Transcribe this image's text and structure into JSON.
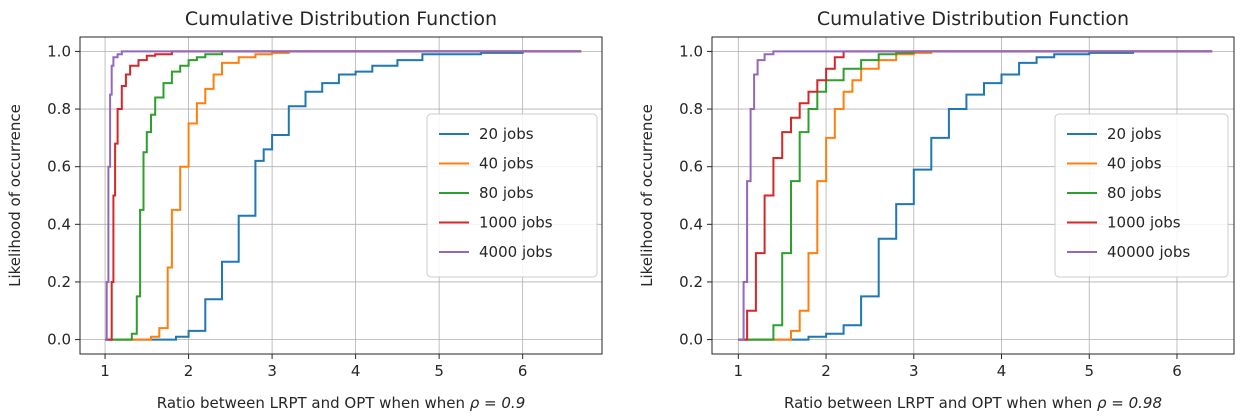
{
  "chart_data": [
    {
      "type": "line",
      "step": true,
      "title": "Cumulative Distribution Function",
      "xlabel_prefix": "Ratio between LRPT and OPT when when ",
      "xlabel_math": "ρ = 0.9",
      "ylabel": "Likelihood of occurrence",
      "xlim": [
        0.7,
        6.95
      ],
      "ylim": [
        -0.05,
        1.05
      ],
      "xticks": [
        1,
        2,
        3,
        4,
        5,
        6
      ],
      "yticks": [
        0.0,
        0.2,
        0.4,
        0.6,
        0.8,
        1.0
      ],
      "xtick_labels": [
        "1",
        "2",
        "3",
        "4",
        "5",
        "6"
      ],
      "ytick_labels": [
        "0.0",
        "0.2",
        "0.4",
        "0.6",
        "0.8",
        "1.0"
      ],
      "grid": true,
      "legend_position": "center-right",
      "series": [
        {
          "name": "20 jobs",
          "color": "#1f77b4",
          "x": [
            1.0,
            1.6,
            1.85,
            2.0,
            2.2,
            2.4,
            2.6,
            2.8,
            2.9,
            3.0,
            3.2,
            3.4,
            3.6,
            3.8,
            4.0,
            4.2,
            4.5,
            4.8,
            5.0,
            5.5,
            6.0,
            6.7
          ],
          "y": [
            0.0,
            0.0,
            0.01,
            0.03,
            0.14,
            0.27,
            0.43,
            0.62,
            0.66,
            0.71,
            0.81,
            0.86,
            0.89,
            0.92,
            0.93,
            0.95,
            0.97,
            0.99,
            0.99,
            0.995,
            1.0,
            1.0
          ]
        },
        {
          "name": "40 jobs",
          "color": "#ff7f0e",
          "x": [
            1.0,
            1.4,
            1.55,
            1.65,
            1.75,
            1.8,
            1.9,
            2.0,
            2.1,
            2.2,
            2.3,
            2.4,
            2.6,
            2.8,
            3.0,
            3.2,
            6.7
          ],
          "y": [
            0.0,
            0.0,
            0.01,
            0.04,
            0.25,
            0.45,
            0.6,
            0.75,
            0.82,
            0.87,
            0.92,
            0.96,
            0.98,
            0.99,
            0.995,
            1.0,
            1.0
          ]
        },
        {
          "name": "80 jobs",
          "color": "#2ca02c",
          "x": [
            1.0,
            1.2,
            1.32,
            1.38,
            1.42,
            1.46,
            1.5,
            1.55,
            1.6,
            1.7,
            1.8,
            1.9,
            2.0,
            2.1,
            2.2,
            2.4,
            6.7
          ],
          "y": [
            0.0,
            0.0,
            0.02,
            0.15,
            0.45,
            0.65,
            0.72,
            0.78,
            0.84,
            0.89,
            0.93,
            0.95,
            0.97,
            0.98,
            0.99,
            1.0,
            1.0
          ]
        },
        {
          "name": "1000 jobs",
          "color": "#d62728",
          "x": [
            1.0,
            1.05,
            1.08,
            1.1,
            1.12,
            1.15,
            1.2,
            1.25,
            1.3,
            1.4,
            1.5,
            1.6,
            1.8,
            6.7
          ],
          "y": [
            0.0,
            0.0,
            0.2,
            0.5,
            0.68,
            0.8,
            0.88,
            0.92,
            0.95,
            0.97,
            0.985,
            0.99,
            1.0,
            1.0
          ]
        },
        {
          "name": "4000 jobs",
          "color": "#9467bd",
          "x": [
            1.0,
            1.02,
            1.04,
            1.06,
            1.08,
            1.1,
            1.15,
            1.2,
            1.3,
            6.7
          ],
          "y": [
            0.0,
            0.2,
            0.6,
            0.85,
            0.95,
            0.98,
            0.99,
            1.0,
            1.0,
            1.0
          ]
        }
      ]
    },
    {
      "type": "line",
      "step": true,
      "title": "Cumulative Distribution Function",
      "xlabel_prefix": "Ratio between LRPT and OPT when when ",
      "xlabel_math": "ρ = 0.98",
      "ylabel": "Likelihood of occurrence",
      "xlim": [
        0.7,
        6.65
      ],
      "ylim": [
        -0.05,
        1.05
      ],
      "xticks": [
        1,
        2,
        3,
        4,
        5,
        6
      ],
      "yticks": [
        0.0,
        0.2,
        0.4,
        0.6,
        0.8,
        1.0
      ],
      "xtick_labels": [
        "1",
        "2",
        "3",
        "4",
        "5",
        "6"
      ],
      "ytick_labels": [
        "0.0",
        "0.2",
        "0.4",
        "0.6",
        "0.8",
        "1.0"
      ],
      "grid": true,
      "legend_position": "center-right",
      "series": [
        {
          "name": "20 jobs",
          "color": "#1f77b4",
          "x": [
            1.0,
            1.6,
            1.8,
            2.0,
            2.2,
            2.4,
            2.6,
            2.8,
            3.0,
            3.2,
            3.4,
            3.6,
            3.8,
            4.0,
            4.2,
            4.4,
            4.6,
            5.0,
            5.5,
            6.0,
            6.4
          ],
          "y": [
            0.0,
            0.0,
            0.01,
            0.02,
            0.05,
            0.15,
            0.35,
            0.47,
            0.59,
            0.7,
            0.8,
            0.85,
            0.89,
            0.92,
            0.96,
            0.98,
            0.99,
            0.995,
            1.0,
            1.0,
            1.0
          ]
        },
        {
          "name": "40 jobs",
          "color": "#ff7f0e",
          "x": [
            1.0,
            1.5,
            1.6,
            1.7,
            1.8,
            1.9,
            2.0,
            2.1,
            2.2,
            2.3,
            2.4,
            2.6,
            2.8,
            3.0,
            3.2,
            6.4
          ],
          "y": [
            0.0,
            0.0,
            0.03,
            0.1,
            0.3,
            0.55,
            0.7,
            0.8,
            0.86,
            0.9,
            0.94,
            0.97,
            0.99,
            0.995,
            1.0,
            1.0
          ]
        },
        {
          "name": "80 jobs",
          "color": "#2ca02c",
          "x": [
            1.0,
            1.3,
            1.4,
            1.5,
            1.6,
            1.7,
            1.8,
            1.9,
            2.0,
            2.2,
            2.4,
            2.6,
            2.8,
            3.0,
            6.4
          ],
          "y": [
            0.0,
            0.0,
            0.05,
            0.3,
            0.55,
            0.72,
            0.8,
            0.86,
            0.9,
            0.94,
            0.97,
            0.99,
            0.995,
            1.0,
            1.0
          ]
        },
        {
          "name": "1000 jobs",
          "color": "#d62728",
          "x": [
            1.0,
            1.05,
            1.1,
            1.2,
            1.3,
            1.4,
            1.5,
            1.6,
            1.7,
            1.8,
            1.9,
            2.0,
            2.1,
            2.2,
            6.4
          ],
          "y": [
            0.0,
            0.0,
            0.1,
            0.3,
            0.5,
            0.63,
            0.72,
            0.77,
            0.82,
            0.86,
            0.9,
            0.94,
            0.98,
            1.0,
            1.0
          ]
        },
        {
          "name": "40000 jobs",
          "color": "#9467bd",
          "x": [
            1.0,
            1.03,
            1.06,
            1.1,
            1.14,
            1.18,
            1.22,
            1.3,
            1.4,
            1.5,
            6.4
          ],
          "y": [
            0.0,
            0.0,
            0.2,
            0.55,
            0.8,
            0.92,
            0.97,
            0.99,
            1.0,
            1.0,
            1.0
          ]
        }
      ]
    }
  ]
}
